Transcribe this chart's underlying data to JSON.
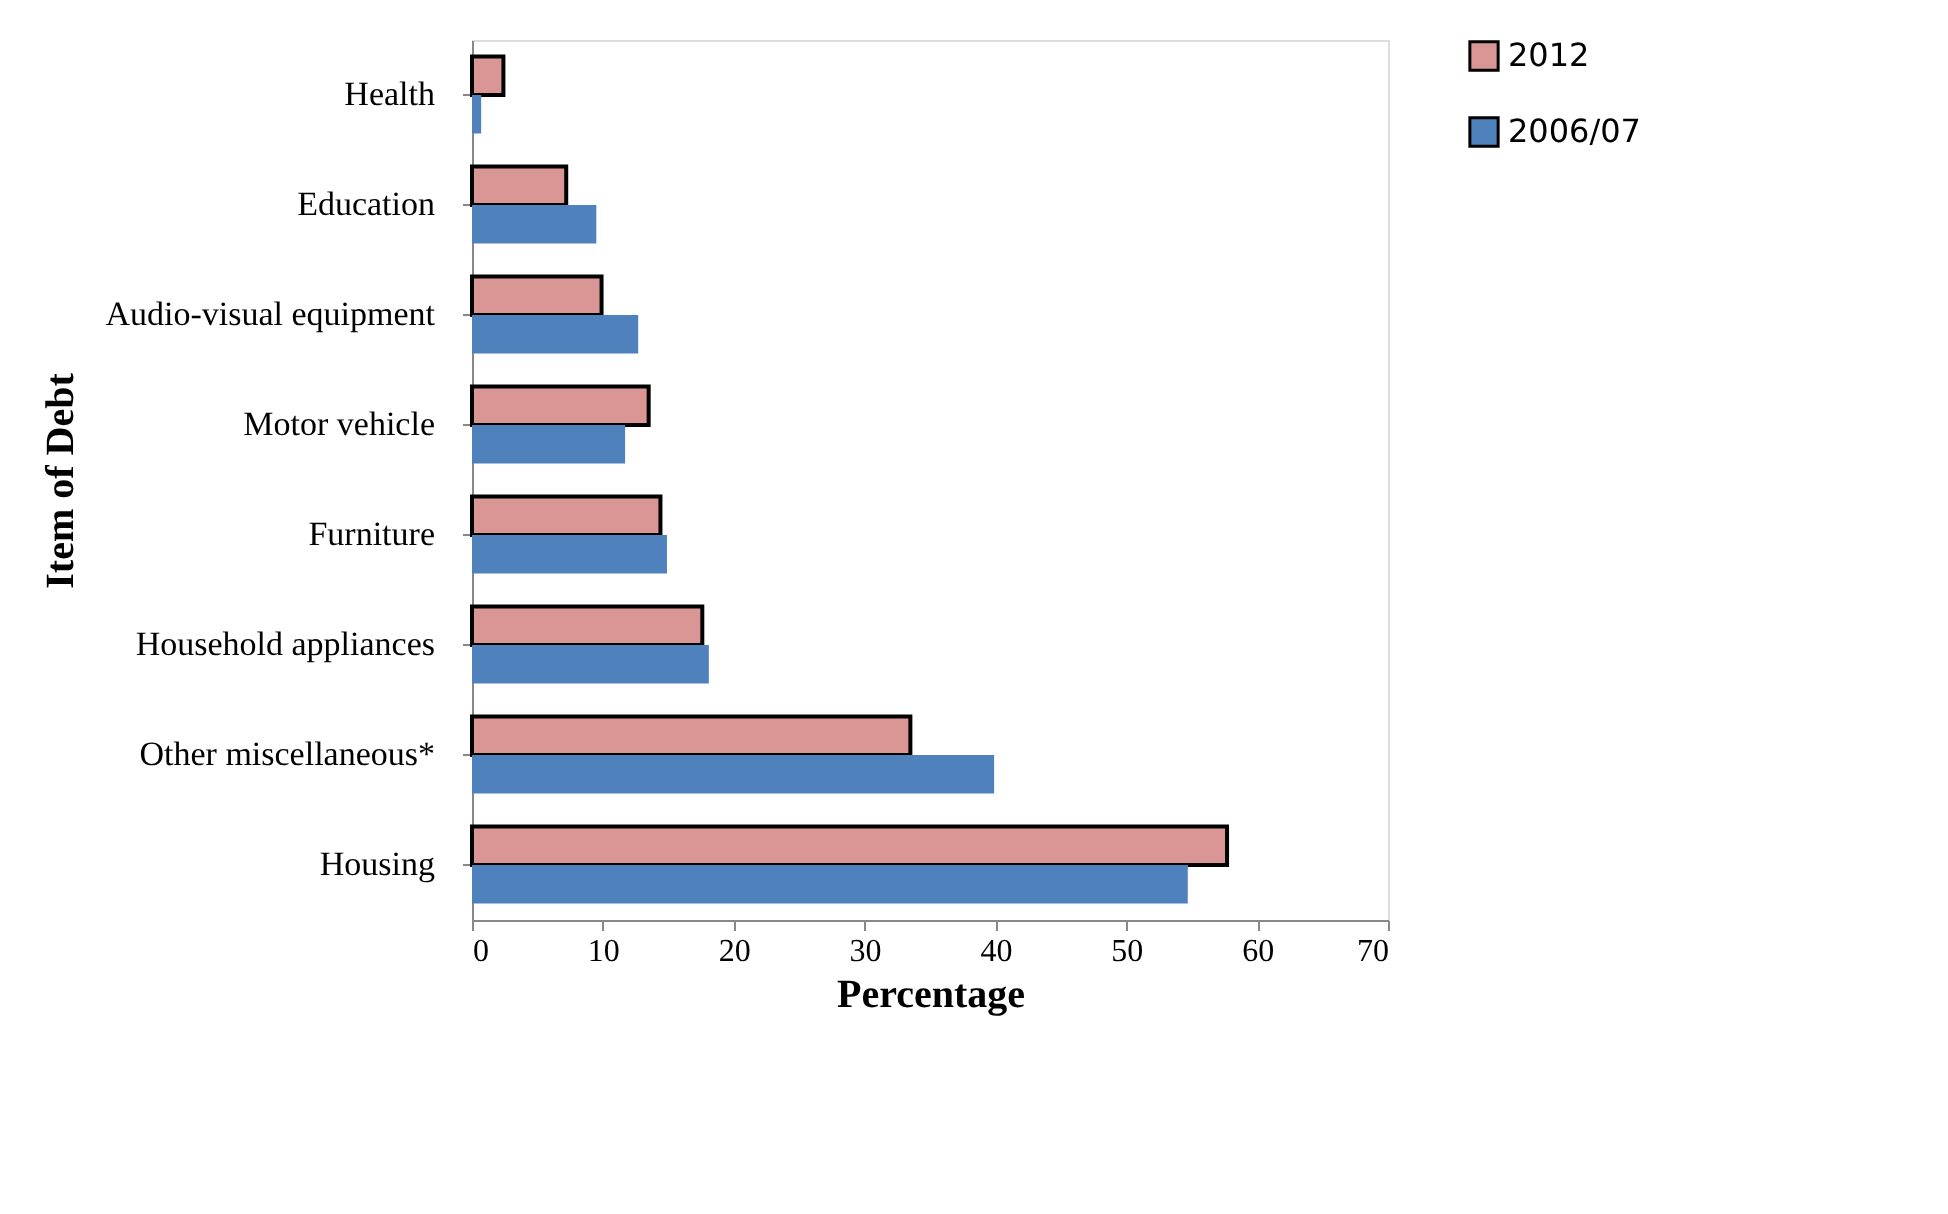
{
  "chart_data": {
    "type": "bar",
    "orientation": "horizontal",
    "xlabel": "Percentage",
    "ylabel": "Item of Debt",
    "categories": [
      "Health",
      "Education",
      "Audio-visual equipment",
      "Motor vehicle",
      "Furniture",
      "Household appliances",
      "Other miscellaneous*",
      "Housing"
    ],
    "series": [
      {
        "name": "2012",
        "color": "#d99694",
        "values": [
          2.4,
          7.2,
          9.9,
          13.5,
          14.4,
          17.6,
          33.5,
          57.7
        ]
      },
      {
        "name": "2006/07",
        "color": "#4f81bd",
        "values": [
          0.7,
          9.5,
          12.7,
          11.7,
          14.9,
          18.1,
          39.9,
          54.7
        ]
      }
    ],
    "xlim": [
      0,
      70
    ],
    "xticks": [
      0,
      10,
      20,
      30,
      40,
      50,
      60,
      70
    ],
    "grid": false,
    "legend": "right"
  }
}
